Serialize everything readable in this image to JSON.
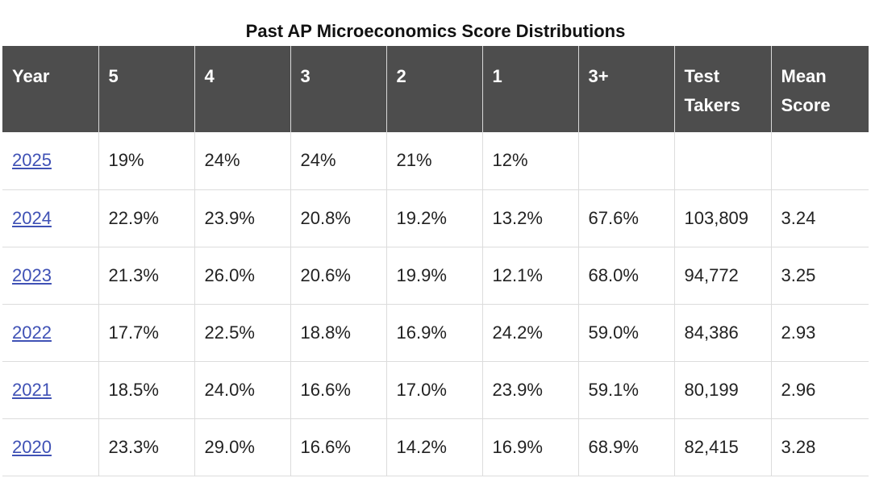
{
  "caption": "Past AP Microeconomics Score Distributions",
  "table": {
    "headers": [
      {
        "line1": "Year",
        "line2": ""
      },
      {
        "line1": "5",
        "line2": ""
      },
      {
        "line1": "4",
        "line2": ""
      },
      {
        "line1": "3",
        "line2": ""
      },
      {
        "line1": "2",
        "line2": ""
      },
      {
        "line1": "1",
        "line2": ""
      },
      {
        "line1": "3+",
        "line2": ""
      },
      {
        "line1": "Test",
        "line2": "Takers"
      },
      {
        "line1": "Mean",
        "line2": "Score"
      }
    ],
    "rows": [
      {
        "year": "2025",
        "c5": "19%",
        "c4": "24%",
        "c3": "24%",
        "c2": "21%",
        "c1": "12%",
        "c3plus": "",
        "takers": "",
        "mean": ""
      },
      {
        "year": "2024",
        "c5": "22.9%",
        "c4": "23.9%",
        "c3": "20.8%",
        "c2": "19.2%",
        "c1": "13.2%",
        "c3plus": "67.6%",
        "takers": "103,809",
        "mean": "3.24"
      },
      {
        "year": "2023",
        "c5": "21.3%",
        "c4": "26.0%",
        "c3": "20.6%",
        "c2": "19.9%",
        "c1": "12.1%",
        "c3plus": "68.0%",
        "takers": "94,772",
        "mean": "3.25"
      },
      {
        "year": "2022",
        "c5": "17.7%",
        "c4": "22.5%",
        "c3": "18.8%",
        "c2": "16.9%",
        "c1": "24.2%",
        "c3plus": "59.0%",
        "takers": "84,386",
        "mean": "2.93"
      },
      {
        "year": "2021",
        "c5": "18.5%",
        "c4": "24.0%",
        "c3": "16.6%",
        "c2": "17.0%",
        "c1": "23.9%",
        "c3plus": "59.1%",
        "takers": "80,199",
        "mean": "2.96"
      },
      {
        "year": "2020",
        "c5": "23.3%",
        "c4": "29.0%",
        "c3": "16.6%",
        "c2": "14.2%",
        "c1": "16.9%",
        "c3plus": "68.9%",
        "takers": "82,415",
        "mean": "3.28"
      }
    ]
  },
  "colors": {
    "header_bg": "#4d4d4d",
    "header_text": "#ffffff",
    "link": "#3f51b5",
    "grid": "#dcdcdc"
  }
}
